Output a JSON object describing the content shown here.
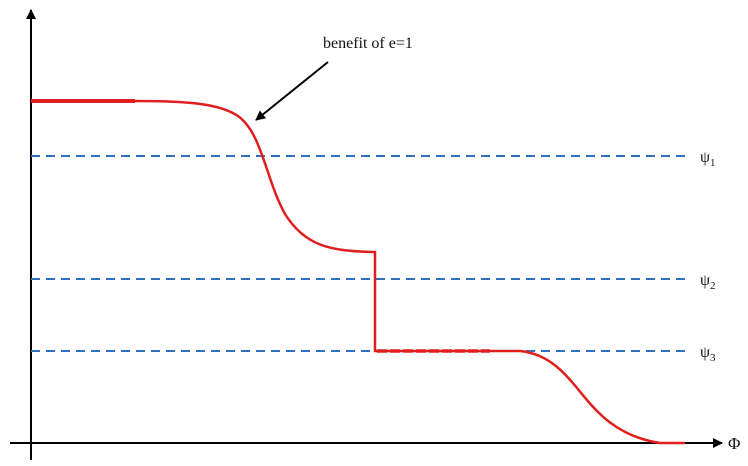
{
  "annotation": {
    "text": "benefit of e=1"
  },
  "x_axis": {
    "label": "Φ"
  },
  "thresholds": [
    {
      "label": "ψ",
      "subscript": "1"
    },
    {
      "label": "ψ",
      "subscript": "2"
    },
    {
      "label": "ψ",
      "subscript": "3"
    }
  ],
  "colors": {
    "curve": "#e01e1e",
    "threshold_lines": "#2e6fbf",
    "axes": "#000000"
  }
}
